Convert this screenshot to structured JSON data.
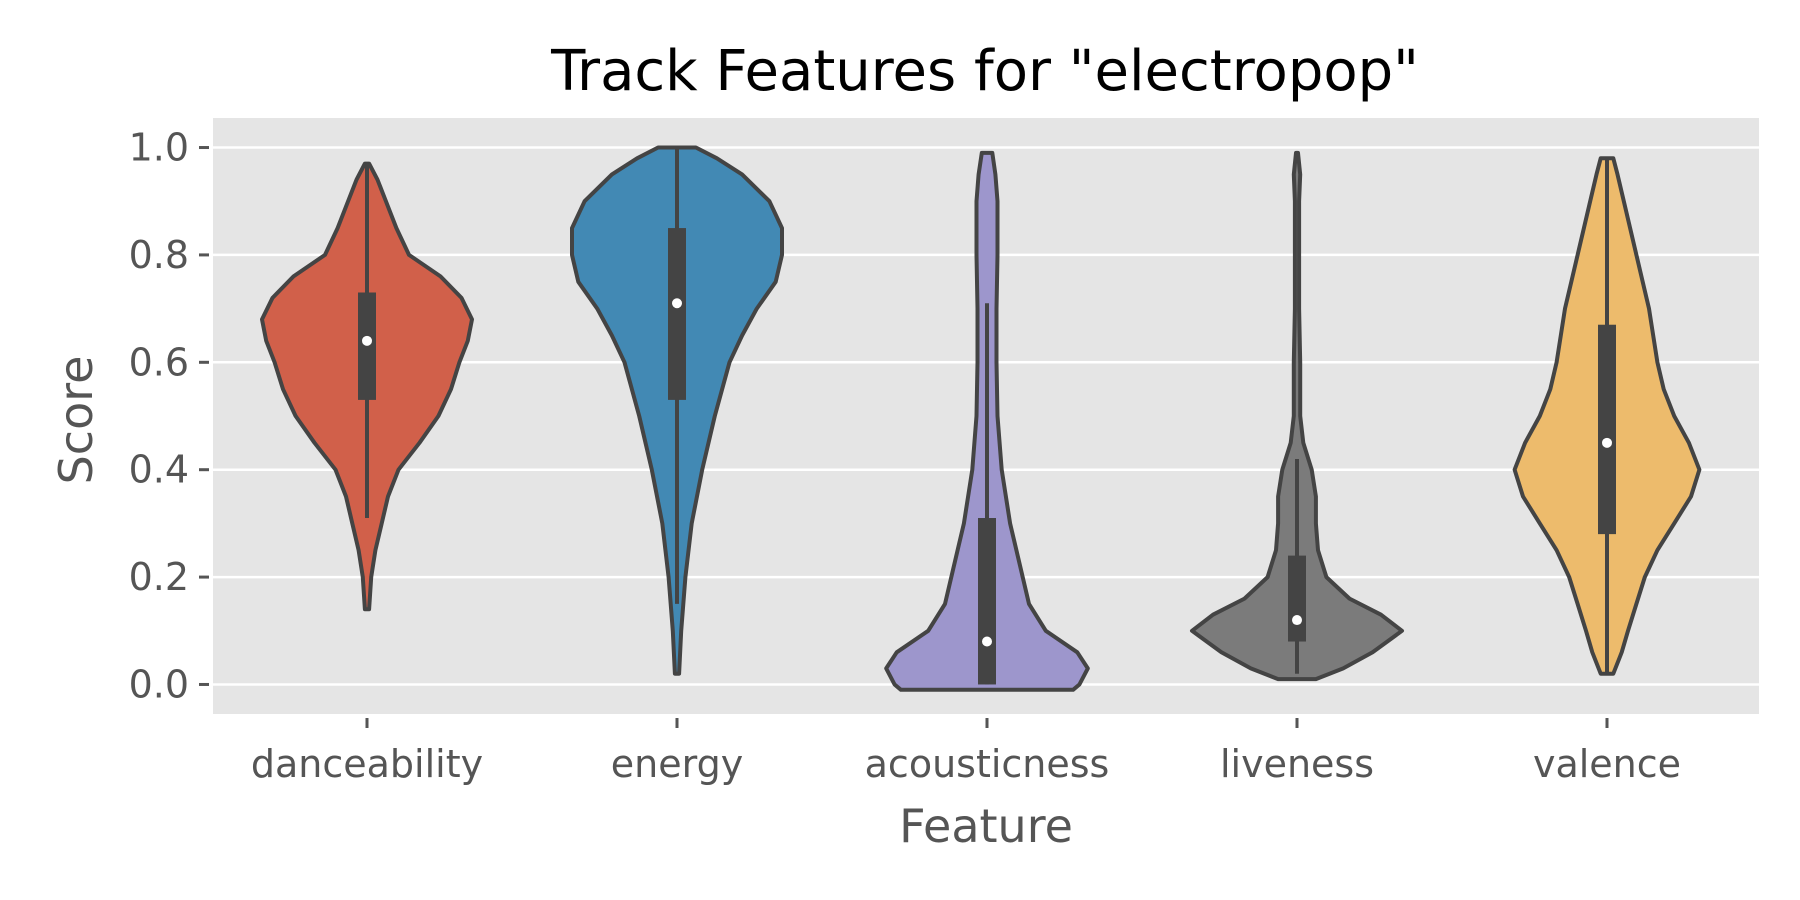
{
  "chart_data": {
    "type": "violin",
    "title": "Track Features for \"electropop\"",
    "xlabel": "Feature",
    "ylabel": "Score",
    "ylim": [
      -0.055,
      1.055
    ],
    "yticks": [
      0.0,
      0.2,
      0.4,
      0.6,
      0.8,
      1.0
    ],
    "ytick_labels": [
      "0.0",
      "0.2",
      "0.4",
      "0.6",
      "0.8",
      "1.0"
    ],
    "grid": true,
    "categories": [
      "danceability",
      "energy",
      "acousticness",
      "liveness",
      "valence"
    ],
    "series": [
      {
        "category": "danceability",
        "color": "#d1604a",
        "min": 0.14,
        "q1": 0.53,
        "median": 0.64,
        "q3": 0.73,
        "max": 0.97,
        "whisker_low": 0.31,
        "whisker_high": 0.97,
        "density": [
          [
            0.14,
            0.02
          ],
          [
            0.2,
            0.04
          ],
          [
            0.25,
            0.08
          ],
          [
            0.3,
            0.14
          ],
          [
            0.35,
            0.2
          ],
          [
            0.4,
            0.3
          ],
          [
            0.45,
            0.5
          ],
          [
            0.5,
            0.68
          ],
          [
            0.55,
            0.8
          ],
          [
            0.6,
            0.88
          ],
          [
            0.64,
            0.96
          ],
          [
            0.68,
            1.0
          ],
          [
            0.72,
            0.9
          ],
          [
            0.76,
            0.7
          ],
          [
            0.8,
            0.4
          ],
          [
            0.85,
            0.28
          ],
          [
            0.9,
            0.18
          ],
          [
            0.94,
            0.1
          ],
          [
            0.97,
            0.02
          ]
        ]
      },
      {
        "category": "energy",
        "color": "#4289b4",
        "min": 0.02,
        "q1": 0.53,
        "median": 0.71,
        "q3": 0.85,
        "max": 1.0,
        "whisker_low": 0.15,
        "whisker_high": 1.0,
        "density": [
          [
            0.02,
            0.02
          ],
          [
            0.1,
            0.04
          ],
          [
            0.2,
            0.08
          ],
          [
            0.3,
            0.14
          ],
          [
            0.4,
            0.24
          ],
          [
            0.5,
            0.36
          ],
          [
            0.6,
            0.5
          ],
          [
            0.65,
            0.62
          ],
          [
            0.7,
            0.76
          ],
          [
            0.75,
            0.94
          ],
          [
            0.8,
            1.0
          ],
          [
            0.85,
            1.0
          ],
          [
            0.9,
            0.88
          ],
          [
            0.95,
            0.62
          ],
          [
            0.98,
            0.38
          ],
          [
            1.0,
            0.18
          ]
        ]
      },
      {
        "category": "acousticness",
        "color": "#9d96cc",
        "min": -0.01,
        "q1": 0.0,
        "median": 0.08,
        "q3": 0.31,
        "max": 0.99,
        "whisker_low": 0.0,
        "whisker_high": 0.71,
        "density": [
          [
            -0.01,
            0.82
          ],
          [
            0.0,
            0.88
          ],
          [
            0.03,
            0.96
          ],
          [
            0.06,
            0.86
          ],
          [
            0.1,
            0.56
          ],
          [
            0.15,
            0.4
          ],
          [
            0.2,
            0.34
          ],
          [
            0.25,
            0.28
          ],
          [
            0.3,
            0.22
          ],
          [
            0.4,
            0.14
          ],
          [
            0.5,
            0.1
          ],
          [
            0.6,
            0.09
          ],
          [
            0.7,
            0.09
          ],
          [
            0.8,
            0.1
          ],
          [
            0.9,
            0.1
          ],
          [
            0.95,
            0.08
          ],
          [
            0.99,
            0.05
          ]
        ]
      },
      {
        "category": "liveness",
        "color": "#7b7b7b",
        "min": 0.01,
        "q1": 0.08,
        "median": 0.12,
        "q3": 0.24,
        "max": 0.99,
        "whisker_low": 0.02,
        "whisker_high": 0.42,
        "density": [
          [
            0.01,
            0.18
          ],
          [
            0.03,
            0.44
          ],
          [
            0.06,
            0.72
          ],
          [
            0.1,
            1.0
          ],
          [
            0.13,
            0.8
          ],
          [
            0.16,
            0.5
          ],
          [
            0.2,
            0.28
          ],
          [
            0.25,
            0.2
          ],
          [
            0.3,
            0.18
          ],
          [
            0.35,
            0.18
          ],
          [
            0.4,
            0.14
          ],
          [
            0.45,
            0.06
          ],
          [
            0.5,
            0.03
          ],
          [
            0.55,
            0.03
          ],
          [
            0.6,
            0.03
          ],
          [
            0.7,
            0.02
          ],
          [
            0.8,
            0.02
          ],
          [
            0.9,
            0.02
          ],
          [
            0.95,
            0.03
          ],
          [
            0.99,
            0.01
          ]
        ]
      },
      {
        "category": "valence",
        "color": "#edbb6c",
        "min": 0.02,
        "q1": 0.28,
        "median": 0.45,
        "q3": 0.67,
        "max": 0.98,
        "whisker_low": 0.02,
        "whisker_high": 0.98,
        "density": [
          [
            0.02,
            0.06
          ],
          [
            0.06,
            0.14
          ],
          [
            0.1,
            0.2
          ],
          [
            0.15,
            0.28
          ],
          [
            0.2,
            0.36
          ],
          [
            0.25,
            0.48
          ],
          [
            0.3,
            0.64
          ],
          [
            0.35,
            0.8
          ],
          [
            0.4,
            0.88
          ],
          [
            0.45,
            0.78
          ],
          [
            0.5,
            0.64
          ],
          [
            0.55,
            0.54
          ],
          [
            0.6,
            0.48
          ],
          [
            0.65,
            0.44
          ],
          [
            0.7,
            0.4
          ],
          [
            0.75,
            0.34
          ],
          [
            0.8,
            0.28
          ],
          [
            0.85,
            0.22
          ],
          [
            0.9,
            0.16
          ],
          [
            0.95,
            0.1
          ],
          [
            0.98,
            0.06
          ]
        ]
      }
    ]
  }
}
